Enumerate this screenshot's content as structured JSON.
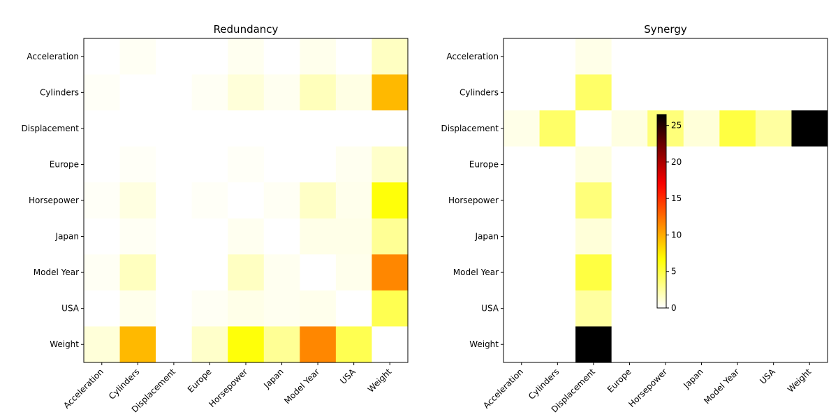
{
  "chart_data": [
    {
      "type": "heatmap",
      "title": "Redundancy",
      "x_categories": [
        "Acceleration",
        "Cylinders",
        "Displacement",
        "Europe",
        "Horsepower",
        "Japan",
        "Model Year",
        "USA",
        "Weight"
      ],
      "y_categories": [
        "Acceleration",
        "Cylinders",
        "Displacement",
        "Europe",
        "Horsepower",
        "Japan",
        "Model Year",
        "USA",
        "Weight"
      ],
      "colormap": "hot_r",
      "color_range": [
        0,
        26.5
      ],
      "values": [
        [
          0,
          0.3,
          0,
          0,
          0.4,
          0,
          0.5,
          0,
          1.6
        ],
        [
          0.2,
          0,
          0,
          0.3,
          1.0,
          0.4,
          1.8,
          0.7,
          9.5
        ],
        [
          0,
          0,
          0,
          0,
          0,
          0,
          0,
          0,
          0
        ],
        [
          0,
          0.2,
          0,
          0,
          0.2,
          0,
          0,
          0.4,
          1.4
        ],
        [
          0.2,
          0.8,
          0,
          0.2,
          0,
          0.3,
          1.5,
          0.5,
          6.5
        ],
        [
          0,
          0.3,
          0,
          0,
          0.4,
          0,
          0.6,
          0.6,
          2.8
        ],
        [
          0.3,
          1.7,
          0,
          0,
          1.6,
          0.4,
          0,
          0.5,
          11.5
        ],
        [
          0,
          0.5,
          0,
          0.3,
          0.6,
          0.4,
          0.5,
          0,
          4.6
        ],
        [
          1.0,
          9.5,
          0,
          1.4,
          6.5,
          2.8,
          11.5,
          4.6,
          0
        ]
      ]
    },
    {
      "type": "heatmap",
      "title": "Synergy",
      "x_categories": [
        "Acceleration",
        "Cylinders",
        "Displacement",
        "Europe",
        "Horsepower",
        "Japan",
        "Model Year",
        "USA",
        "Weight"
      ],
      "y_categories": [
        "Acceleration",
        "Cylinders",
        "Displacement",
        "Europe",
        "Horsepower",
        "Japan",
        "Model Year",
        "USA",
        "Weight"
      ],
      "colormap": "hot_r",
      "color_range": [
        0,
        26.5
      ],
      "colorbar_ticks": [
        0,
        5,
        10,
        15,
        20,
        25
      ],
      "values": [
        [
          0,
          0,
          0.6,
          0,
          0,
          0,
          0,
          0,
          0
        ],
        [
          0,
          0,
          4.0,
          0,
          0,
          0,
          0,
          0,
          0
        ],
        [
          0.6,
          4.0,
          0,
          0.8,
          3.5,
          1.0,
          5.0,
          2.5,
          26.5
        ],
        [
          0,
          0,
          0.8,
          0,
          0,
          0,
          0,
          0,
          0
        ],
        [
          0,
          0,
          3.5,
          0,
          0,
          0,
          0,
          0,
          0
        ],
        [
          0,
          0,
          1.0,
          0,
          0,
          0,
          0,
          0,
          0
        ],
        [
          0,
          0,
          5.0,
          0,
          0,
          0,
          0,
          0,
          0
        ],
        [
          0,
          0,
          2.5,
          0,
          0,
          0,
          0,
          0,
          0
        ],
        [
          0,
          0,
          26.5,
          0,
          0,
          0,
          0,
          0,
          0
        ]
      ]
    }
  ]
}
